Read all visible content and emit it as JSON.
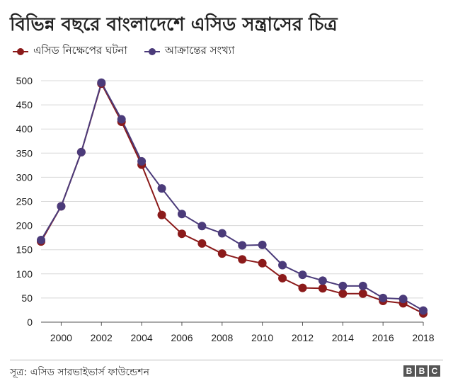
{
  "header": {
    "title": "বিভিন্ন বছরে বাংলাদেশে এসিড সন্ত্রাসের চিত্র"
  },
  "legend": {
    "items": [
      {
        "label": "এসিড নিক্ষেপের ঘটনা",
        "color": "#8b1a1a"
      },
      {
        "label": "আক্রান্তের সংখ্যা",
        "color": "#4b3b7a"
      }
    ]
  },
  "footer": {
    "source": "সূত্র: এসিড সারভাইভার্স ফাউন্ডেশন",
    "logo_letters": [
      "B",
      "B",
      "C"
    ]
  },
  "chart_data": {
    "type": "line",
    "title": "বিভিন্ন বছরে বাংলাদেশে এসিড সন্ত্রাসের চিত্র",
    "xlabel": "",
    "ylabel": "",
    "x": [
      1999,
      2000,
      2001,
      2002,
      2003,
      2004,
      2005,
      2006,
      2007,
      2008,
      2009,
      2010,
      2011,
      2012,
      2013,
      2014,
      2015,
      2016,
      2017,
      2018
    ],
    "xticks": [
      2000,
      2002,
      2004,
      2006,
      2008,
      2010,
      2012,
      2014,
      2016,
      2018
    ],
    "ylim": [
      0,
      500
    ],
    "yticks": [
      0,
      50,
      100,
      150,
      200,
      250,
      300,
      350,
      400,
      450,
      500
    ],
    "grid": true,
    "legend_position": "top-left",
    "series": [
      {
        "name": "এসিড নিক্ষেপের ঘটনা",
        "color": "#8b1a1a",
        "values": [
          167,
          240,
          352,
          494,
          415,
          326,
          222,
          183,
          163,
          142,
          130,
          122,
          91,
          71,
          70,
          59,
          59,
          44,
          39,
          18
        ]
      },
      {
        "name": "আক্রান্তের সংখ্যা",
        "color": "#4b3b7a",
        "values": [
          170,
          240,
          352,
          496,
          420,
          333,
          277,
          224,
          199,
          184,
          159,
          160,
          118,
          98,
          86,
          75,
          75,
          50,
          48,
          24
        ]
      }
    ]
  }
}
